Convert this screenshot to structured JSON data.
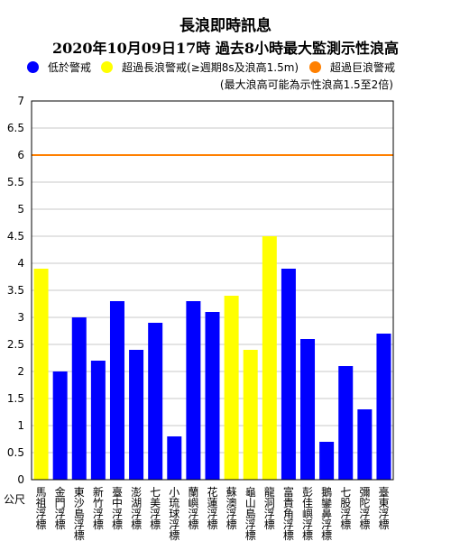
{
  "title": "長浪即時訊息",
  "subtitle": "2020年10月09日17時 過去8小時最大監測示性浪高",
  "legend": [
    {
      "label": "低於警戒",
      "color": "#0000ff"
    },
    {
      "label": "超過長浪警戒(≥週期8s及浪高1.5m)",
      "color": "#ffff00"
    },
    {
      "label": "超過巨浪警戒",
      "color": "#ff8000"
    }
  ],
  "note": "(最大浪高可能為示性浪高1.5至2倍)",
  "unit_label": "公尺",
  "chart_data": {
    "type": "bar",
    "title": "長浪即時訊息",
    "subtitle": "2020年10月09日17時 過去8小時最大監測示性浪高",
    "ylabel": "公尺",
    "ylim": [
      0,
      7
    ],
    "yticks": [
      "0",
      "0.5",
      "1",
      "1.5",
      "2",
      "2.5",
      "3",
      "3.5",
      "4",
      "4.5",
      "5",
      "5.5",
      "6",
      "6.5",
      "7"
    ],
    "grid": true,
    "threshold": {
      "value": 6,
      "label": "超過巨浪警戒",
      "color": "#ff8000"
    },
    "categories": [
      "馬祖浮標",
      "金門浮標",
      "東沙島浮標",
      "新竹浮標",
      "臺中浮標",
      "澎湖浮標",
      "七美浮標",
      "小琉球浮標",
      "蘭嶼浮標",
      "花蓮浮標",
      "蘇澳浮標",
      "龜山島浮標",
      "龍洞浮標",
      "富貴角浮標",
      "彭佳嶼浮標",
      "鵝鑾鼻浮標",
      "七股浮標",
      "彌陀浮標",
      "臺東浮標"
    ],
    "values": [
      3.9,
      2.0,
      3.0,
      2.2,
      3.3,
      2.4,
      2.9,
      0.8,
      3.3,
      3.1,
      3.4,
      2.4,
      4.5,
      3.9,
      2.6,
      0.7,
      2.1,
      1.3,
      2.7
    ],
    "colors": [
      "#ffff00",
      "#0000ff",
      "#0000ff",
      "#0000ff",
      "#0000ff",
      "#0000ff",
      "#0000ff",
      "#0000ff",
      "#0000ff",
      "#0000ff",
      "#ffff00",
      "#ffff00",
      "#ffff00",
      "#0000ff",
      "#0000ff",
      "#0000ff",
      "#0000ff",
      "#0000ff",
      "#0000ff"
    ]
  }
}
